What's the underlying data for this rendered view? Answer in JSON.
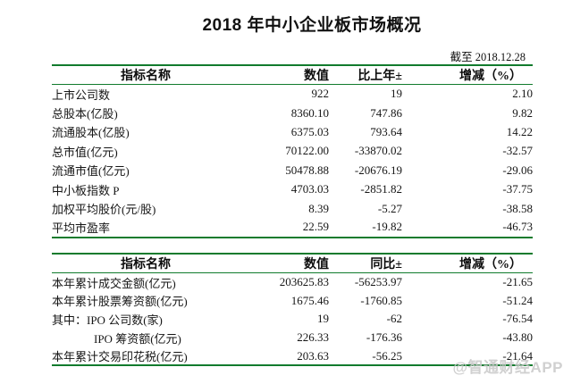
{
  "page": {
    "title": "2018 年中小企业板市场概况",
    "as_of_date": "截至 2018.12.28",
    "watermark": "@智通财经APP",
    "accent_green": "#117b2d",
    "text_color": "#161616",
    "watermark_color": "#c8c8c8"
  },
  "market_table": {
    "headers": [
      "指标名称",
      "数值",
      "比上年±",
      "增减（%）"
    ],
    "rows": [
      {
        "label": "上市公司数",
        "value": "922",
        "change": "19",
        "pct": "2.10"
      },
      {
        "label": "总股本(亿股)",
        "value": "8360.10",
        "change": "747.86",
        "pct": "9.82"
      },
      {
        "label": "流通股本(亿股)",
        "value": "6375.03",
        "change": "793.64",
        "pct": "14.22"
      },
      {
        "label": "总市值(亿元)",
        "value": "70122.00",
        "change": "-33870.02",
        "pct": "-32.57"
      },
      {
        "label": "流通市值(亿元)",
        "value": "50478.88",
        "change": "-20676.19",
        "pct": "-29.06"
      },
      {
        "label": "中小板指数 P",
        "value": "4703.03",
        "change": "-2851.82",
        "pct": "-37.75"
      },
      {
        "label": "加权平均股价(元/股)",
        "value": "8.39",
        "change": "-5.27",
        "pct": "-38.58"
      },
      {
        "label": "平均市盈率",
        "value": "22.59",
        "change": "-19.82",
        "pct": "-46.73"
      }
    ]
  },
  "trading_table": {
    "headers": [
      "指标名称",
      "数值",
      "同比±",
      "增减（%）"
    ],
    "rows": [
      {
        "label": "本年累计成交金额(亿元)",
        "value": "203625.83",
        "change": "-56253.97",
        "pct": "-21.65"
      },
      {
        "label": "本年累计股票筹资额(亿元)",
        "value": "1675.46",
        "change": "-1760.85",
        "pct": "-51.24"
      },
      {
        "label": "其中：IPO 公司数(家)",
        "value": "19",
        "change": "-62",
        "pct": "-76.54"
      },
      {
        "label": "IPO 筹资额(亿元)",
        "indent": true,
        "value": "226.33",
        "change": "-176.36",
        "pct": "-43.80"
      },
      {
        "label": "本年累计交易印花税(亿元)",
        "value": "203.63",
        "change": "-56.25",
        "pct": "-21.64"
      }
    ]
  }
}
